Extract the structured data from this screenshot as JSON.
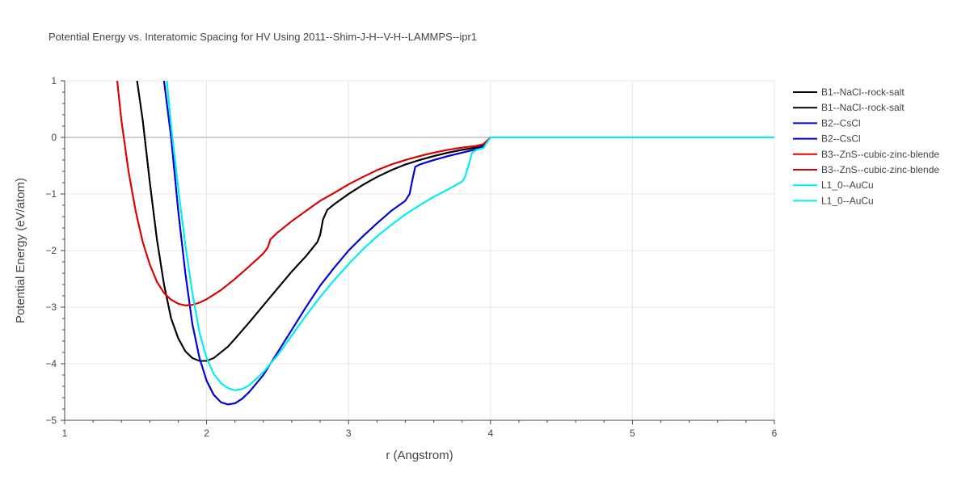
{
  "chart_data": {
    "type": "line",
    "title": "Potential Energy vs. Interatomic Spacing for HV Using 2011--Shim-J-H--V-H--LAMMPS--ipr1",
    "xlabel": "r (Angstrom)",
    "ylabel": "Potential Energy (eV/atom)",
    "xlim": [
      1,
      6
    ],
    "ylim": [
      -5,
      1
    ],
    "x_ticks": [
      1,
      2,
      3,
      4,
      5,
      6
    ],
    "y_ticks": [
      1,
      0,
      -1,
      -2,
      -3,
      -4,
      -5
    ],
    "y_tick_labels": [
      "1",
      "0",
      "−1",
      "−2",
      "−3",
      "−4",
      "−5"
    ],
    "grid": true,
    "legend_position": "right",
    "series": [
      {
        "name": "B1--NaCl--rock-salt",
        "color": "#000000",
        "points": [
          [
            1.51,
            1.0
          ],
          [
            1.55,
            0.3
          ],
          [
            1.6,
            -0.8
          ],
          [
            1.65,
            -1.8
          ],
          [
            1.7,
            -2.6
          ],
          [
            1.75,
            -3.2
          ],
          [
            1.8,
            -3.55
          ],
          [
            1.85,
            -3.78
          ],
          [
            1.9,
            -3.9
          ],
          [
            1.95,
            -3.95
          ],
          [
            2.0,
            -3.95
          ],
          [
            2.05,
            -3.9
          ],
          [
            2.1,
            -3.8
          ],
          [
            2.15,
            -3.7
          ],
          [
            2.2,
            -3.56
          ],
          [
            2.3,
            -3.27
          ],
          [
            2.4,
            -2.97
          ],
          [
            2.5,
            -2.67
          ],
          [
            2.6,
            -2.37
          ],
          [
            2.7,
            -2.1
          ],
          [
            2.78,
            -1.85
          ],
          [
            2.8,
            -1.72
          ],
          [
            2.82,
            -1.45
          ],
          [
            2.85,
            -1.28
          ],
          [
            2.9,
            -1.18
          ],
          [
            3.0,
            -1.0
          ],
          [
            3.1,
            -0.84
          ],
          [
            3.2,
            -0.7
          ],
          [
            3.3,
            -0.58
          ],
          [
            3.4,
            -0.48
          ],
          [
            3.5,
            -0.4
          ],
          [
            3.6,
            -0.33
          ],
          [
            3.7,
            -0.27
          ],
          [
            3.8,
            -0.22
          ],
          [
            3.9,
            -0.18
          ],
          [
            3.95,
            -0.14
          ],
          [
            4.0,
            0.0
          ],
          [
            6.0,
            0.0
          ]
        ]
      },
      {
        "name": "B1--NaCl--rock-salt",
        "color": "#000000",
        "points": [
          [
            1.51,
            1.0
          ],
          [
            1.55,
            0.3
          ],
          [
            1.6,
            -0.8
          ],
          [
            1.65,
            -1.8
          ],
          [
            1.7,
            -2.6
          ],
          [
            1.75,
            -3.2
          ],
          [
            1.8,
            -3.55
          ],
          [
            1.85,
            -3.78
          ],
          [
            1.9,
            -3.9
          ],
          [
            1.95,
            -3.95
          ],
          [
            2.0,
            -3.95
          ],
          [
            2.05,
            -3.9
          ],
          [
            2.1,
            -3.8
          ],
          [
            2.15,
            -3.7
          ],
          [
            2.2,
            -3.56
          ],
          [
            2.3,
            -3.27
          ],
          [
            2.4,
            -2.97
          ],
          [
            2.5,
            -2.67
          ],
          [
            2.6,
            -2.37
          ],
          [
            2.7,
            -2.1
          ],
          [
            2.78,
            -1.85
          ],
          [
            2.8,
            -1.72
          ],
          [
            2.82,
            -1.45
          ],
          [
            2.85,
            -1.28
          ],
          [
            2.9,
            -1.18
          ],
          [
            3.0,
            -1.0
          ],
          [
            3.1,
            -0.84
          ],
          [
            3.2,
            -0.7
          ],
          [
            3.3,
            -0.58
          ],
          [
            3.4,
            -0.48
          ],
          [
            3.5,
            -0.4
          ],
          [
            3.6,
            -0.33
          ],
          [
            3.7,
            -0.27
          ],
          [
            3.8,
            -0.22
          ],
          [
            3.9,
            -0.18
          ],
          [
            3.95,
            -0.14
          ],
          [
            4.0,
            0.0
          ],
          [
            6.0,
            0.0
          ]
        ]
      },
      {
        "name": "B2--CsCl",
        "color": "#0000dd",
        "points": [
          [
            1.7,
            1.0
          ],
          [
            1.75,
            0.0
          ],
          [
            1.8,
            -1.3
          ],
          [
            1.85,
            -2.4
          ],
          [
            1.9,
            -3.3
          ],
          [
            1.95,
            -3.9
          ],
          [
            2.0,
            -4.3
          ],
          [
            2.05,
            -4.55
          ],
          [
            2.1,
            -4.68
          ],
          [
            2.15,
            -4.72
          ],
          [
            2.2,
            -4.7
          ],
          [
            2.25,
            -4.62
          ],
          [
            2.3,
            -4.5
          ],
          [
            2.4,
            -4.2
          ],
          [
            2.5,
            -3.8
          ],
          [
            2.6,
            -3.4
          ],
          [
            2.7,
            -3.0
          ],
          [
            2.8,
            -2.62
          ],
          [
            2.9,
            -2.3
          ],
          [
            3.0,
            -2.0
          ],
          [
            3.1,
            -1.75
          ],
          [
            3.2,
            -1.52
          ],
          [
            3.3,
            -1.3
          ],
          [
            3.4,
            -1.12
          ],
          [
            3.43,
            -1.0
          ],
          [
            3.45,
            -0.75
          ],
          [
            3.47,
            -0.52
          ],
          [
            3.5,
            -0.48
          ],
          [
            3.6,
            -0.4
          ],
          [
            3.7,
            -0.33
          ],
          [
            3.8,
            -0.27
          ],
          [
            3.9,
            -0.21
          ],
          [
            3.95,
            -0.16
          ],
          [
            4.0,
            0.0
          ],
          [
            6.0,
            0.0
          ]
        ]
      },
      {
        "name": "B2--CsCl",
        "color": "#0000dd",
        "points": [
          [
            1.7,
            1.0
          ],
          [
            1.75,
            0.0
          ],
          [
            1.8,
            -1.3
          ],
          [
            1.85,
            -2.4
          ],
          [
            1.9,
            -3.3
          ],
          [
            1.95,
            -3.9
          ],
          [
            2.0,
            -4.3
          ],
          [
            2.05,
            -4.55
          ],
          [
            2.1,
            -4.68
          ],
          [
            2.15,
            -4.72
          ],
          [
            2.2,
            -4.7
          ],
          [
            2.25,
            -4.62
          ],
          [
            2.3,
            -4.5
          ],
          [
            2.4,
            -4.2
          ],
          [
            2.5,
            -3.8
          ],
          [
            2.6,
            -3.4
          ],
          [
            2.7,
            -3.0
          ],
          [
            2.8,
            -2.62
          ],
          [
            2.9,
            -2.3
          ],
          [
            3.0,
            -2.0
          ],
          [
            3.1,
            -1.75
          ],
          [
            3.2,
            -1.52
          ],
          [
            3.3,
            -1.3
          ],
          [
            3.4,
            -1.12
          ],
          [
            3.43,
            -1.0
          ],
          [
            3.45,
            -0.75
          ],
          [
            3.47,
            -0.52
          ],
          [
            3.5,
            -0.48
          ],
          [
            3.6,
            -0.4
          ],
          [
            3.7,
            -0.33
          ],
          [
            3.8,
            -0.27
          ],
          [
            3.9,
            -0.21
          ],
          [
            3.95,
            -0.16
          ],
          [
            4.0,
            0.0
          ],
          [
            6.0,
            0.0
          ]
        ]
      },
      {
        "name": "B3--ZnS--cubic-zinc-blende",
        "color": "#dd0000",
        "points": [
          [
            1.37,
            1.0
          ],
          [
            1.4,
            0.3
          ],
          [
            1.45,
            -0.6
          ],
          [
            1.5,
            -1.3
          ],
          [
            1.55,
            -1.85
          ],
          [
            1.6,
            -2.25
          ],
          [
            1.65,
            -2.55
          ],
          [
            1.7,
            -2.75
          ],
          [
            1.75,
            -2.87
          ],
          [
            1.8,
            -2.94
          ],
          [
            1.85,
            -2.97
          ],
          [
            1.9,
            -2.96
          ],
          [
            1.95,
            -2.92
          ],
          [
            2.0,
            -2.86
          ],
          [
            2.1,
            -2.7
          ],
          [
            2.2,
            -2.5
          ],
          [
            2.3,
            -2.28
          ],
          [
            2.4,
            -2.05
          ],
          [
            2.43,
            -1.95
          ],
          [
            2.45,
            -1.8
          ],
          [
            2.5,
            -1.68
          ],
          [
            2.6,
            -1.48
          ],
          [
            2.7,
            -1.3
          ],
          [
            2.8,
            -1.12
          ],
          [
            2.9,
            -0.98
          ],
          [
            3.0,
            -0.83
          ],
          [
            3.1,
            -0.7
          ],
          [
            3.2,
            -0.58
          ],
          [
            3.3,
            -0.48
          ],
          [
            3.4,
            -0.4
          ],
          [
            3.5,
            -0.33
          ],
          [
            3.6,
            -0.27
          ],
          [
            3.7,
            -0.22
          ],
          [
            3.8,
            -0.18
          ],
          [
            3.9,
            -0.15
          ],
          [
            3.95,
            -0.12
          ],
          [
            4.0,
            0.0
          ],
          [
            6.0,
            0.0
          ]
        ]
      },
      {
        "name": "B3--ZnS--cubic-zinc-blende",
        "color": "#dd0000",
        "points": [
          [
            1.37,
            1.0
          ],
          [
            1.4,
            0.3
          ],
          [
            1.45,
            -0.6
          ],
          [
            1.5,
            -1.3
          ],
          [
            1.55,
            -1.85
          ],
          [
            1.6,
            -2.25
          ],
          [
            1.65,
            -2.55
          ],
          [
            1.7,
            -2.75
          ],
          [
            1.75,
            -2.87
          ],
          [
            1.8,
            -2.94
          ],
          [
            1.85,
            -2.97
          ],
          [
            1.9,
            -2.96
          ],
          [
            1.95,
            -2.92
          ],
          [
            2.0,
            -2.86
          ],
          [
            2.1,
            -2.7
          ],
          [
            2.2,
            -2.5
          ],
          [
            2.3,
            -2.28
          ],
          [
            2.4,
            -2.05
          ],
          [
            2.43,
            -1.95
          ],
          [
            2.45,
            -1.8
          ],
          [
            2.5,
            -1.68
          ],
          [
            2.6,
            -1.48
          ],
          [
            2.7,
            -1.3
          ],
          [
            2.8,
            -1.12
          ],
          [
            2.9,
            -0.98
          ],
          [
            3.0,
            -0.83
          ],
          [
            3.1,
            -0.7
          ],
          [
            3.2,
            -0.58
          ],
          [
            3.3,
            -0.48
          ],
          [
            3.4,
            -0.4
          ],
          [
            3.5,
            -0.33
          ],
          [
            3.6,
            -0.27
          ],
          [
            3.7,
            -0.22
          ],
          [
            3.8,
            -0.18
          ],
          [
            3.9,
            -0.15
          ],
          [
            3.95,
            -0.12
          ],
          [
            4.0,
            0.0
          ],
          [
            6.0,
            0.0
          ]
        ]
      },
      {
        "name": "L1_0--AuCu",
        "color": "#00eeee",
        "points": [
          [
            1.72,
            1.0
          ],
          [
            1.75,
            0.2
          ],
          [
            1.8,
            -0.9
          ],
          [
            1.85,
            -1.9
          ],
          [
            1.9,
            -2.75
          ],
          [
            1.95,
            -3.45
          ],
          [
            2.0,
            -3.9
          ],
          [
            2.05,
            -4.18
          ],
          [
            2.1,
            -4.34
          ],
          [
            2.15,
            -4.43
          ],
          [
            2.2,
            -4.47
          ],
          [
            2.25,
            -4.45
          ],
          [
            2.3,
            -4.38
          ],
          [
            2.4,
            -4.15
          ],
          [
            2.5,
            -3.85
          ],
          [
            2.6,
            -3.5
          ],
          [
            2.7,
            -3.15
          ],
          [
            2.8,
            -2.82
          ],
          [
            2.9,
            -2.52
          ],
          [
            3.0,
            -2.24
          ],
          [
            3.1,
            -1.98
          ],
          [
            3.2,
            -1.75
          ],
          [
            3.3,
            -1.55
          ],
          [
            3.4,
            -1.36
          ],
          [
            3.5,
            -1.2
          ],
          [
            3.6,
            -1.05
          ],
          [
            3.7,
            -0.92
          ],
          [
            3.8,
            -0.78
          ],
          [
            3.82,
            -0.7
          ],
          [
            3.85,
            -0.45
          ],
          [
            3.87,
            -0.27
          ],
          [
            3.9,
            -0.22
          ],
          [
            3.95,
            -0.19
          ],
          [
            4.0,
            0.0
          ],
          [
            6.0,
            0.0
          ]
        ]
      },
      {
        "name": "L1_0--AuCu",
        "color": "#00eeee",
        "points": [
          [
            1.72,
            1.0
          ],
          [
            1.75,
            0.2
          ],
          [
            1.8,
            -0.9
          ],
          [
            1.85,
            -1.9
          ],
          [
            1.9,
            -2.75
          ],
          [
            1.95,
            -3.45
          ],
          [
            2.0,
            -3.9
          ],
          [
            2.05,
            -4.18
          ],
          [
            2.1,
            -4.34
          ],
          [
            2.15,
            -4.43
          ],
          [
            2.2,
            -4.47
          ],
          [
            2.25,
            -4.45
          ],
          [
            2.3,
            -4.38
          ],
          [
            2.4,
            -4.15
          ],
          [
            2.5,
            -3.85
          ],
          [
            2.6,
            -3.5
          ],
          [
            2.7,
            -3.15
          ],
          [
            2.8,
            -2.82
          ],
          [
            2.9,
            -2.52
          ],
          [
            3.0,
            -2.24
          ],
          [
            3.1,
            -1.98
          ],
          [
            3.2,
            -1.75
          ],
          [
            3.3,
            -1.55
          ],
          [
            3.4,
            -1.36
          ],
          [
            3.5,
            -1.2
          ],
          [
            3.6,
            -1.05
          ],
          [
            3.7,
            -0.92
          ],
          [
            3.8,
            -0.78
          ],
          [
            3.82,
            -0.7
          ],
          [
            3.85,
            -0.45
          ],
          [
            3.87,
            -0.27
          ],
          [
            3.9,
            -0.22
          ],
          [
            3.95,
            -0.19
          ],
          [
            4.0,
            0.0
          ],
          [
            6.0,
            0.0
          ]
        ]
      }
    ]
  }
}
